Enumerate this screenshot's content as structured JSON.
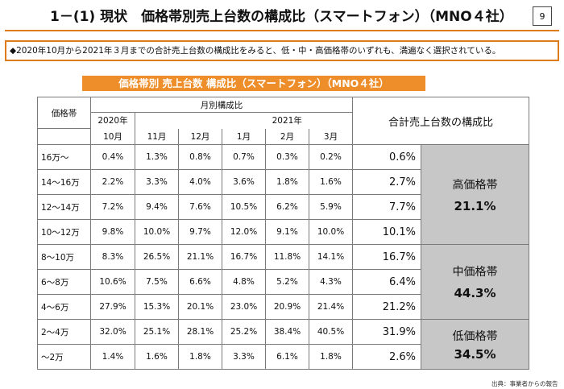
{
  "page": {
    "title": "1－(1) 現状　価格帯別売上台数の構成比（スマートフォン）（MNO４社）",
    "page_number": "9",
    "summary": "◆2020年10月から2021年３月までの合計売上台数の構成比をみると、低・中・高価格帯のいずれも、満遍なく選択されている。",
    "source": "出典：事業者からの報告"
  },
  "table": {
    "banner": "価格帯別 売上台数 構成比（スマートフォン）（MNO４社）",
    "header": {
      "price_band": "価格帯",
      "monthly": "月別構成比",
      "year_2020": "2020年",
      "year_2021": "2021年",
      "months": [
        "10月",
        "11月",
        "12月",
        "1月",
        "2月",
        "3月"
      ],
      "total": "合計売上台数の構成比"
    },
    "rows": [
      {
        "label": "16万～",
        "values": [
          "0.4%",
          "1.3%",
          "0.8%",
          "0.7%",
          "0.3%",
          "0.2%"
        ],
        "total": "0.6%"
      },
      {
        "label": "14～16万",
        "values": [
          "2.2%",
          "3.3%",
          "4.0%",
          "3.6%",
          "1.8%",
          "1.6%"
        ],
        "total": "2.7%"
      },
      {
        "label": "12～14万",
        "values": [
          "7.2%",
          "9.4%",
          "7.6%",
          "10.5%",
          "6.2%",
          "5.9%"
        ],
        "total": "7.7%"
      },
      {
        "label": "10～12万",
        "values": [
          "9.8%",
          "10.0%",
          "9.7%",
          "12.0%",
          "9.1%",
          "10.0%"
        ],
        "total": "10.1%"
      },
      {
        "label": "8～10万",
        "values": [
          "8.3%",
          "26.5%",
          "21.1%",
          "16.7%",
          "11.8%",
          "14.1%"
        ],
        "total": "16.7%"
      },
      {
        "label": "6～8万",
        "values": [
          "10.6%",
          "7.5%",
          "6.6%",
          "4.8%",
          "5.2%",
          "4.3%"
        ],
        "total": "6.4%"
      },
      {
        "label": "4～6万",
        "values": [
          "27.9%",
          "15.3%",
          "20.1%",
          "23.0%",
          "20.9%",
          "21.4%"
        ],
        "total": "21.2%"
      },
      {
        "label": "2～4万",
        "values": [
          "32.0%",
          "25.1%",
          "28.1%",
          "25.2%",
          "38.4%",
          "40.5%"
        ],
        "total": "31.9%"
      },
      {
        "label": "～2万",
        "values": [
          "1.4%",
          "1.6%",
          "1.8%",
          "3.3%",
          "6.1%",
          "1.8%"
        ],
        "total": "2.6%"
      }
    ],
    "segments": {
      "high": {
        "name": "高価格帯",
        "percent": "21.1%"
      },
      "mid": {
        "name": "中価格帯",
        "percent": "44.3%"
      },
      "low": {
        "name": "低価格帯",
        "percent": "34.5%"
      }
    }
  }
}
